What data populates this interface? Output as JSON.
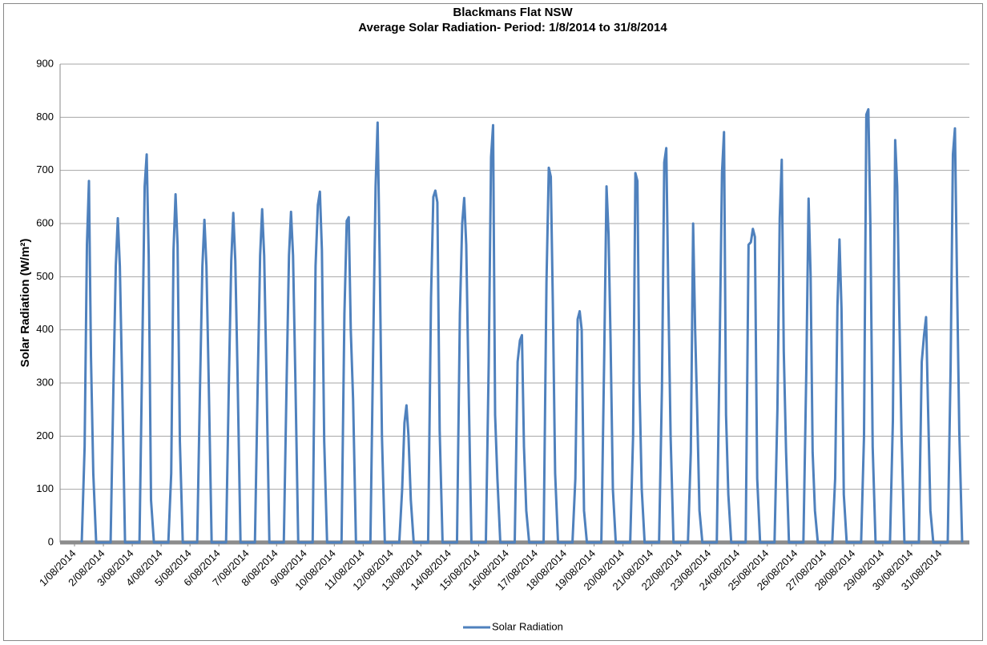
{
  "chart_data": {
    "type": "line",
    "title": "Blackmans Flat NSW",
    "subtitle": "Average Solar Radiation- Period: 1/8/2014 to 31/8/2014",
    "y_label": "Solar Radiation (W/m²)",
    "xlim": [
      -0.5,
      31
    ],
    "ylim": [
      0,
      900
    ],
    "yticks": [
      0,
      100,
      200,
      300,
      400,
      500,
      600,
      700,
      800,
      900
    ],
    "xticks": [
      {
        "value": 0,
        "label": "1/08/2014"
      },
      {
        "value": 1,
        "label": "2/08/2014"
      },
      {
        "value": 2,
        "label": "3/08/2014"
      },
      {
        "value": 3,
        "label": "4/08/2014"
      },
      {
        "value": 4,
        "label": "5/08/2014"
      },
      {
        "value": 5,
        "label": "6/08/2014"
      },
      {
        "value": 6,
        "label": "7/08/2014"
      },
      {
        "value": 7,
        "label": "8/08/2014"
      },
      {
        "value": 8,
        "label": "9/08/2014"
      },
      {
        "value": 9,
        "label": "10/08/2014"
      },
      {
        "value": 10,
        "label": "11/08/2014"
      },
      {
        "value": 11,
        "label": "12/08/2014"
      },
      {
        "value": 12,
        "label": "13/08/2014"
      },
      {
        "value": 13,
        "label": "14/08/2014"
      },
      {
        "value": 14,
        "label": "15/08/2014"
      },
      {
        "value": 15,
        "label": "16/08/2014"
      },
      {
        "value": 16,
        "label": "17/08/2014"
      },
      {
        "value": 17,
        "label": "18/08/2014"
      },
      {
        "value": 18,
        "label": "19/08/2014"
      },
      {
        "value": 19,
        "label": "20/08/2014"
      },
      {
        "value": 20,
        "label": "21/08/2014"
      },
      {
        "value": 21,
        "label": "22/08/2014"
      },
      {
        "value": 22,
        "label": "23/08/2014"
      },
      {
        "value": 23,
        "label": "24/08/2014"
      },
      {
        "value": 24,
        "label": "25/08/2014"
      },
      {
        "value": 25,
        "label": "26/08/2014"
      },
      {
        "value": 26,
        "label": "27/08/2014"
      },
      {
        "value": 27,
        "label": "28/08/2014"
      },
      {
        "value": 28,
        "label": "29/08/2014"
      },
      {
        "value": 29,
        "label": "30/08/2014"
      },
      {
        "value": 30,
        "label": "31/08/2014"
      }
    ],
    "grid": true,
    "legend": "bottom",
    "x": [
      0.25,
      0.35,
      0.43,
      0.5,
      0.57,
      0.65,
      0.75,
      1.25,
      1.35,
      1.43,
      1.5,
      1.57,
      1.65,
      1.75,
      2.25,
      2.35,
      2.43,
      2.5,
      2.57,
      2.65,
      2.75,
      3.25,
      3.35,
      3.43,
      3.5,
      3.57,
      3.65,
      3.75,
      4.25,
      4.35,
      4.43,
      4.5,
      4.57,
      4.65,
      4.75,
      5.25,
      5.35,
      5.43,
      5.5,
      5.57,
      5.65,
      5.75,
      6.25,
      6.35,
      6.43,
      6.5,
      6.57,
      6.65,
      6.75,
      7.25,
      7.35,
      7.43,
      7.5,
      7.57,
      7.65,
      7.75,
      8.25,
      8.35,
      8.43,
      8.5,
      8.57,
      8.65,
      8.75,
      9.25,
      9.35,
      9.43,
      9.5,
      9.57,
      9.65,
      9.75,
      10.25,
      10.35,
      10.43,
      10.5,
      10.57,
      10.65,
      10.75,
      11.25,
      11.35,
      11.43,
      11.5,
      11.57,
      11.65,
      11.75,
      12.25,
      12.35,
      12.43,
      12.5,
      12.57,
      12.65,
      12.75,
      13.25,
      13.35,
      13.43,
      13.5,
      13.57,
      13.65,
      13.75,
      14.25,
      14.35,
      14.43,
      14.5,
      14.57,
      14.65,
      14.75,
      15.25,
      15.35,
      15.43,
      15.5,
      15.57,
      15.65,
      15.75,
      16.25,
      16.35,
      16.43,
      16.5,
      16.57,
      16.65,
      16.75,
      17.25,
      17.35,
      17.43,
      17.5,
      17.57,
      17.65,
      17.75,
      18.25,
      18.35,
      18.43,
      18.5,
      18.57,
      18.65,
      18.75,
      19.25,
      19.35,
      19.43,
      19.5,
      19.57,
      19.65,
      19.75,
      20.25,
      20.35,
      20.43,
      20.5,
      20.57,
      20.65,
      20.75,
      21.25,
      21.35,
      21.43,
      21.5,
      21.57,
      21.65,
      21.75,
      22.25,
      22.35,
      22.43,
      22.5,
      22.57,
      22.65,
      22.75,
      23.25,
      23.35,
      23.43,
      23.5,
      23.57,
      23.65,
      23.75,
      24.25,
      24.35,
      24.43,
      24.5,
      24.57,
      24.65,
      24.75,
      25.25,
      25.35,
      25.43,
      25.5,
      25.57,
      25.65,
      25.75,
      26.25,
      26.35,
      26.43,
      26.5,
      26.57,
      26.65,
      26.75,
      27.25,
      27.35,
      27.43,
      27.5,
      27.57,
      27.65,
      27.75,
      28.25,
      28.35,
      28.43,
      28.5,
      28.57,
      28.65,
      28.75,
      29.25,
      29.35,
      29.43,
      29.5,
      29.57,
      29.65,
      29.75,
      30.25,
      30.35,
      30.43,
      30.5,
      30.57,
      30.65,
      30.75
    ],
    "series": [
      {
        "name": "Solar Radiation",
        "color": "#4f81bd",
        "values": [
          0,
          180,
          560,
          680,
          350,
          130,
          0,
          0,
          300,
          520,
          610,
          520,
          300,
          0,
          0,
          370,
          670,
          730,
          540,
          80,
          0,
          0,
          130,
          550,
          655,
          560,
          190,
          0,
          0,
          300,
          520,
          607,
          520,
          300,
          0,
          0,
          310,
          530,
          620,
          530,
          310,
          0,
          0,
          310,
          540,
          627,
          540,
          310,
          0,
          0,
          310,
          540,
          622,
          540,
          310,
          0,
          0,
          520,
          635,
          660,
          550,
          190,
          0,
          0,
          430,
          605,
          612,
          400,
          270,
          0,
          0,
          380,
          670,
          790,
          540,
          200,
          0,
          0,
          100,
          225,
          258,
          200,
          80,
          0,
          0,
          460,
          650,
          662,
          640,
          210,
          0,
          0,
          430,
          600,
          648,
          560,
          300,
          0,
          0,
          340,
          725,
          785,
          240,
          120,
          0,
          0,
          340,
          380,
          390,
          180,
          60,
          0,
          0,
          490,
          705,
          688,
          450,
          130,
          0,
          0,
          120,
          420,
          435,
          400,
          60,
          0,
          0,
          350,
          670,
          580,
          380,
          100,
          0,
          0,
          200,
          695,
          680,
          300,
          100,
          0,
          0,
          290,
          715,
          742,
          470,
          200,
          0,
          0,
          170,
          600,
          400,
          250,
          60,
          0,
          0,
          370,
          695,
          772,
          240,
          90,
          0,
          0,
          560,
          565,
          590,
          575,
          120,
          0,
          0,
          250,
          610,
          720,
          360,
          170,
          0,
          0,
          320,
          647,
          502,
          170,
          60,
          0,
          0,
          120,
          445,
          570,
          440,
          90,
          0,
          0,
          200,
          805,
          815,
          600,
          180,
          0,
          0,
          230,
          757,
          670,
          440,
          200,
          0,
          0,
          340,
          390,
          424,
          250,
          60,
          0,
          0,
          330,
          730,
          779,
          500,
          210,
          0
        ]
      }
    ]
  }
}
